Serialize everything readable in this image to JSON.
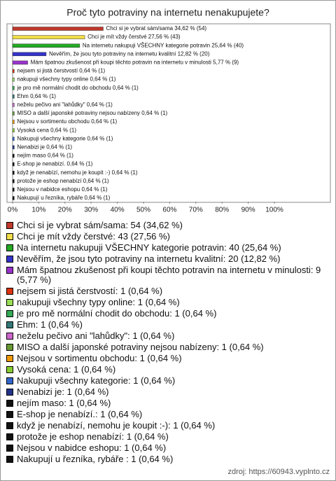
{
  "chart_data": {
    "type": "bar",
    "orientation": "horizontal",
    "title": "Proč tyto potraviny na internetu nenakupujete?",
    "values": [
      34.62,
      27.56,
      25.64,
      12.82,
      5.77,
      0.64,
      0.64,
      0.64,
      0.64,
      0.64,
      0.64,
      0.64,
      0.64,
      0.64,
      0.64,
      0.64,
      0.64,
      0.64,
      0.64,
      0.64,
      0.64
    ],
    "value_labels": [
      "Chci si je vybrat sám/sama 34,62 % (54)",
      "Chci je mít vždy čerstvé 27,56 % (43)",
      "Na internetu nakupuji VŠECHNY kategorie potravin 25,64 % (40)",
      "Nevěřím, že jsou tyto potraviny na internetu kvalitní 12,82 % (20)",
      "Mám špatnou zkušenost při koupi těchto potravin na internetu v minulosti 5,77 % (9)",
      "nejsem si jistá čerstvostí 0,64 % (1)",
      "nakupuji všechny typy online 0,64 % (1)",
      "je pro mě normální chodit do obchodu 0,64 % (1)",
      "Ehm 0,64 % (1)",
      "neželu pečivo ani \"lahůdky\" 0,64 % (1)",
      "MISO a další japonské potraviny nejsou nabízeny 0,64 % (1)",
      "Nejsou v sortimentu obchodu 0,64 % (1)",
      "Vysoká cena 0,64 % (1)",
      "Nakupuji všechny kategorie 0,64 % (1)",
      "Nenabizi je 0,64 % (1)",
      "nejím maso 0,64 % (1)",
      "E-shop je nenabízí. 0,64 % (1)",
      "když je nenabízí, nemohu je koupit :-) 0,64 % (1)",
      "protože je eshop nenabízí 0,64 % (1)",
      "Nejsou v nabidce eshopu 0,64 % (1)",
      "Nakupují u řezníka, rybáře 0,64 % (1)"
    ],
    "legend_labels": [
      "Chci si je vybrat sám/sama: 54 (34,62 %)",
      "Chci je mít vždy čerstvé: 43 (27,56 %)",
      "Na internetu nakupuji VŠECHNY kategorie potravin: 40 (25,64 %)",
      "Nevěřím, že jsou tyto potraviny na internetu kvalitní: 20 (12,82 %)",
      "Mám špatnou zkušenost při koupi těchto potravin na internetu v minulosti: 9 (5,77 %)",
      "nejsem si jistá čerstvostí: 1 (0,64 %)",
      "nakupuji všechny typy online: 1 (0,64 %)",
      "je pro mě normální chodit do obchodu: 1 (0,64 %)",
      "Ehm: 1 (0,64 %)",
      "neželu pečivo ani \"lahůdky\": 1 (0,64 %)",
      "MISO a další japonské potraviny nejsou nabízeny: 1 (0,64 %)",
      "Nejsou v sortimentu obchodu: 1 (0,64 %)",
      "Vysoká cena: 1 (0,64 %)",
      "Nakupuji všechny kategorie: 1 (0,64 %)",
      "Nenabizi je: 1 (0,64 %)",
      "nejím maso: 1 (0,64 %)",
      "E-shop je nenabízí.: 1 (0,64 %)",
      "když je nenabízí, nemohu je koupit :-): 1 (0,64 %)",
      "protože je eshop nenabízí: 1 (0,64 %)",
      "Nejsou v nabidce eshopu: 1 (0,64 %)",
      "Nakupují u řezníka, rybáře : 1 (0,64 %)"
    ],
    "colors": [
      "#c0392b",
      "#f2dd4a",
      "#22aa22",
      "#3333cc",
      "#9933cc",
      "#dd3311",
      "#99dd55",
      "#33aa55",
      "#337777",
      "#cc66cc",
      "#669933",
      "#ee9900",
      "#88cc33",
      "#3366cc",
      "#223388",
      "#111111",
      "#111111",
      "#111111",
      "#111111",
      "#111111",
      "#111111"
    ],
    "xlim": [
      0,
      100
    ],
    "xticks": [
      {
        "value": 0,
        "label": "0%"
      },
      {
        "value": 10,
        "label": "10%"
      },
      {
        "value": 20,
        "label": "20%"
      },
      {
        "value": 30,
        "label": "30%"
      },
      {
        "value": 40,
        "label": "40%"
      },
      {
        "value": 50,
        "label": "50%"
      },
      {
        "value": 60,
        "label": "60%"
      },
      {
        "value": 70,
        "label": "70%"
      },
      {
        "value": 80,
        "label": "80%"
      },
      {
        "value": 90,
        "label": "90%"
      },
      {
        "value": 100,
        "label": "100%"
      }
    ],
    "grid": false,
    "source": "zdroj: https://60943.vyplnto.cz"
  }
}
